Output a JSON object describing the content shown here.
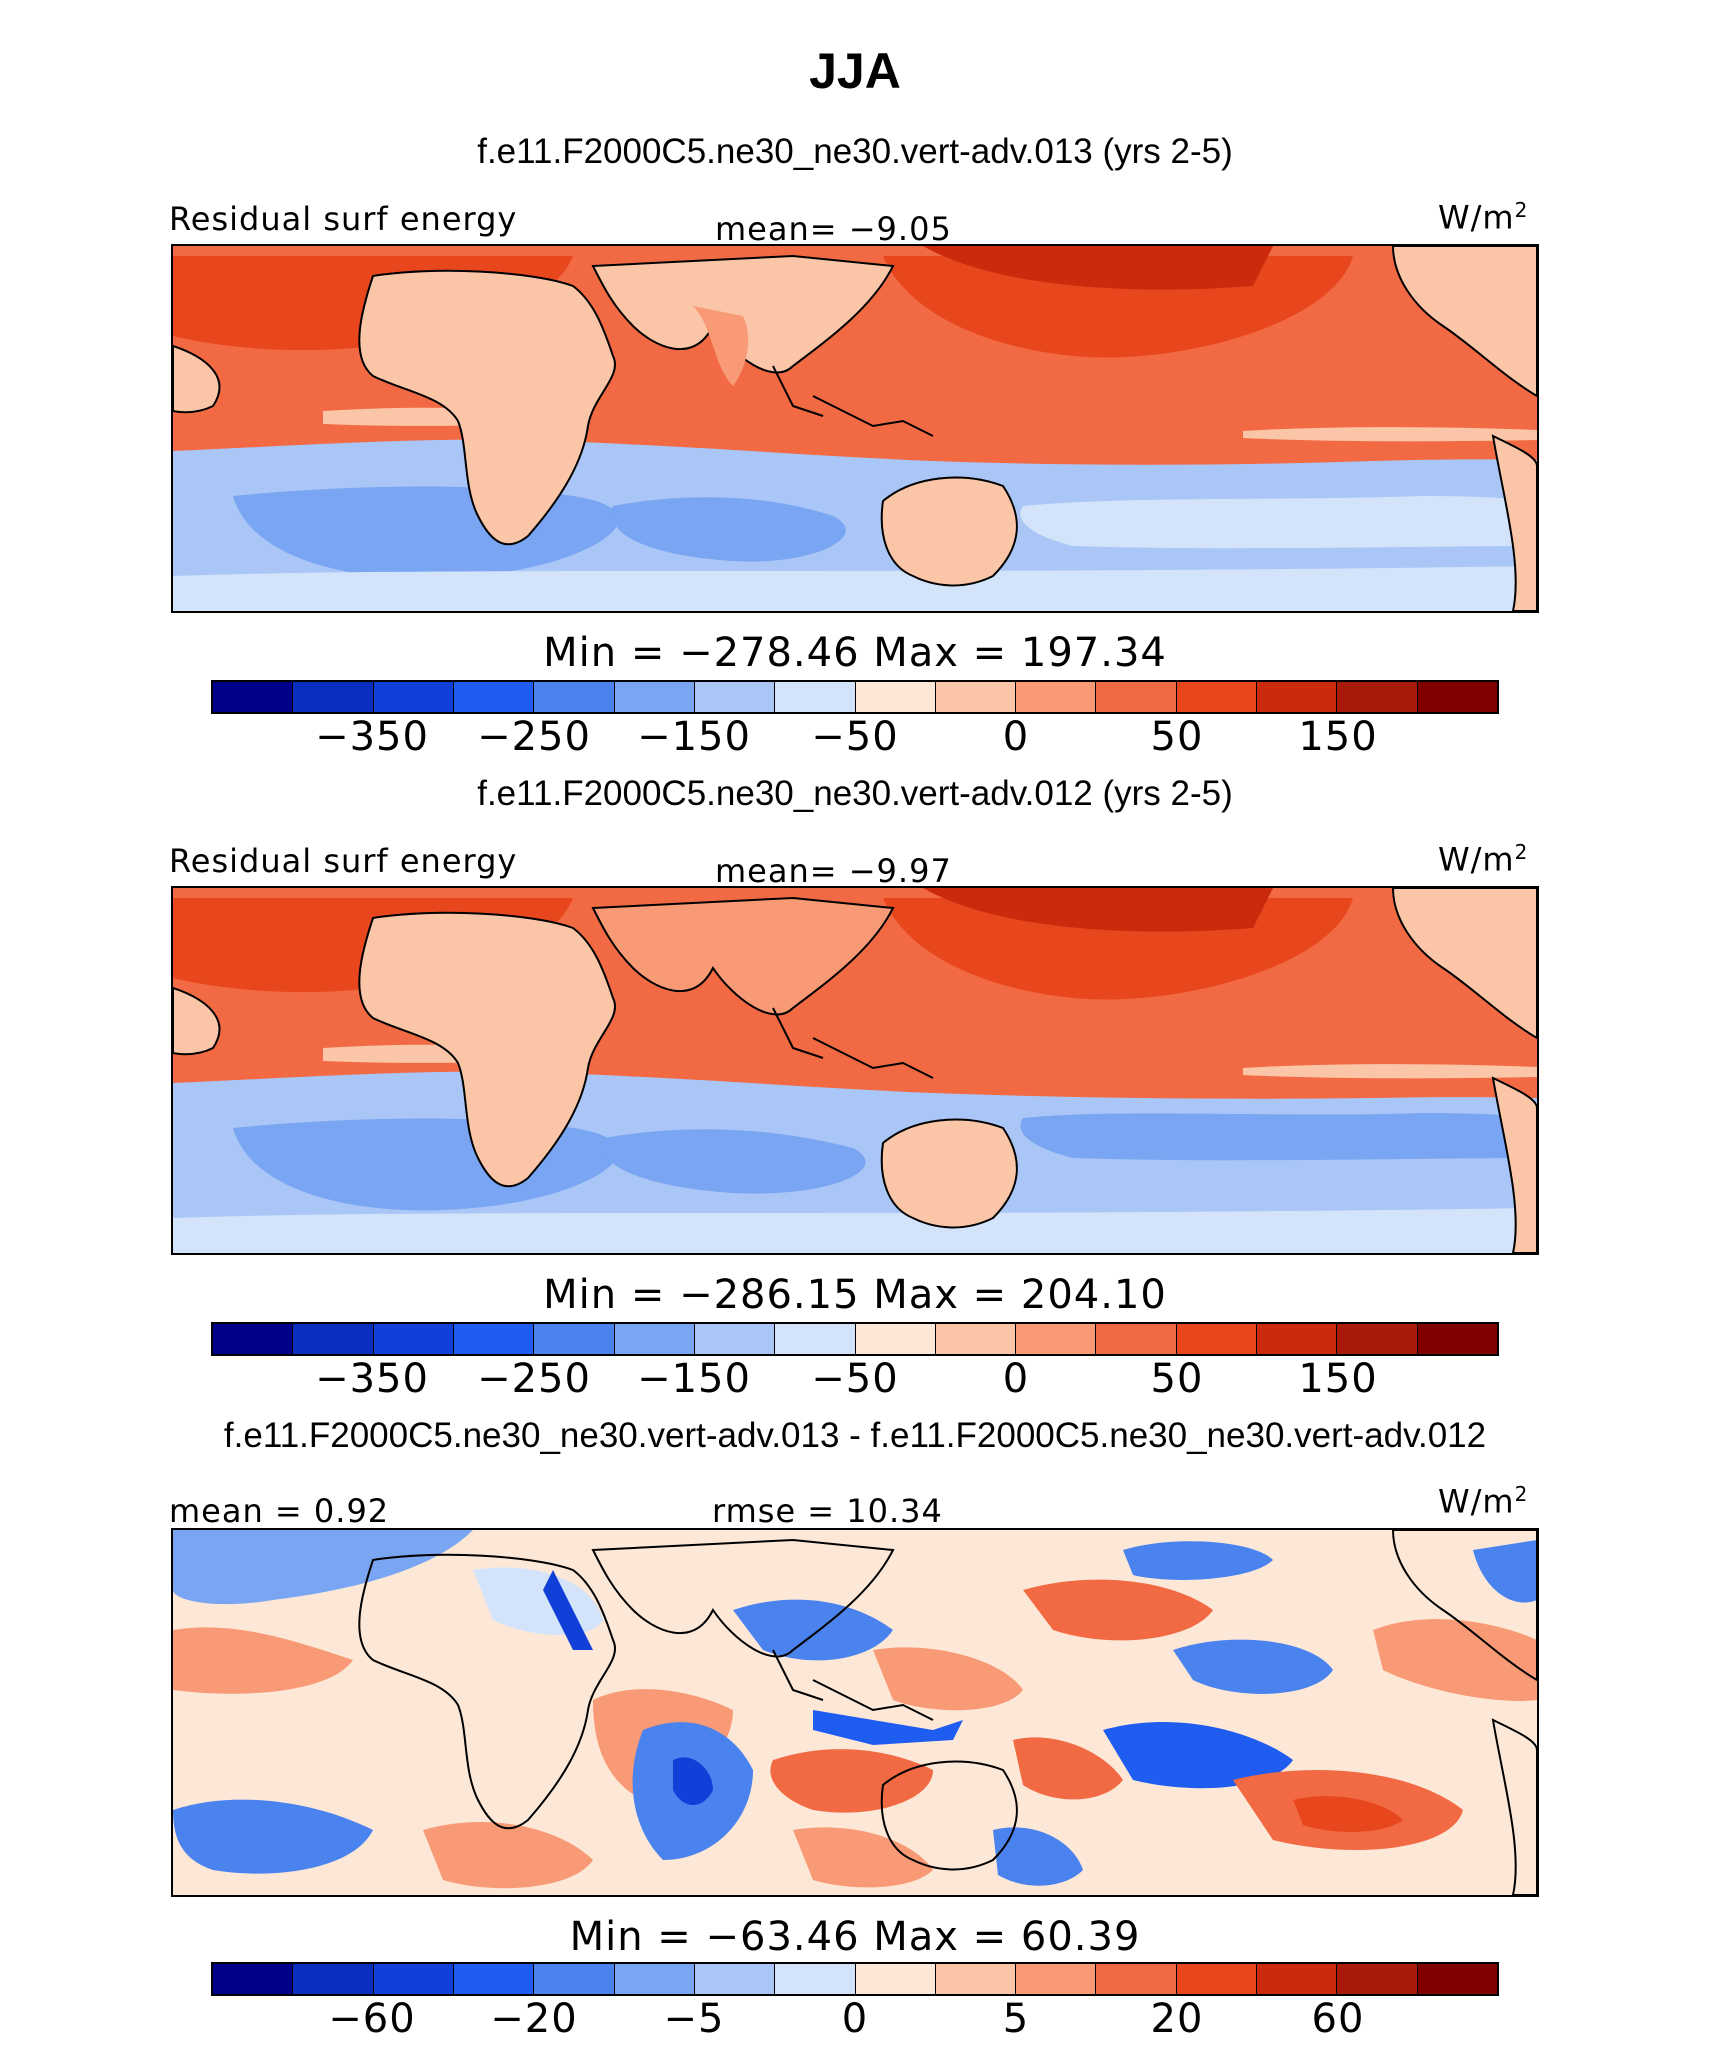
{
  "title": "JJA",
  "units_base": "W/m",
  "units_exp": "2",
  "panels": [
    {
      "case": "f.e11.F2000C5.ne30_ne30.vert-adv.013 (yrs 2-5)",
      "left_label": "Residual surf energy",
      "center_label": "mean=   −9.05",
      "minmax": "Min = −278.46 Max = 197.34",
      "ticks": [
        "−350",
        "−250",
        "−150",
        "−50",
        "0",
        "50",
        "150"
      ]
    },
    {
      "case": "f.e11.F2000C5.ne30_ne30.vert-adv.012 (yrs 2-5)",
      "left_label": "Residual surf energy",
      "center_label": "mean=   −9.97",
      "minmax": "Min = −286.15 Max = 204.10",
      "ticks": [
        "−350",
        "−250",
        "−150",
        "−50",
        "0",
        "50",
        "150"
      ]
    },
    {
      "case": "f.e11.F2000C5.ne30_ne30.vert-adv.013 - f.e11.F2000C5.ne30_ne30.vert-adv.012",
      "left_label": "mean =   0.92",
      "center_label": "rmse =   10.34",
      "minmax": "Min = −63.46 Max =  60.39",
      "ticks": [
        "−60",
        "−20",
        "−5",
        "0",
        "5",
        "20",
        "60"
      ]
    }
  ],
  "colormap": [
    "#00008b",
    "#0a2fbf",
    "#1040d8",
    "#1f5cf0",
    "#4a82ee",
    "#7aa5f2",
    "#a9c6f6",
    "#d2e3fa",
    "#fde8d8",
    "#fbc6a8",
    "#f89a76",
    "#f26a43",
    "#e8471d",
    "#cc2a0c",
    "#a81a0a",
    "#800000"
  ]
}
